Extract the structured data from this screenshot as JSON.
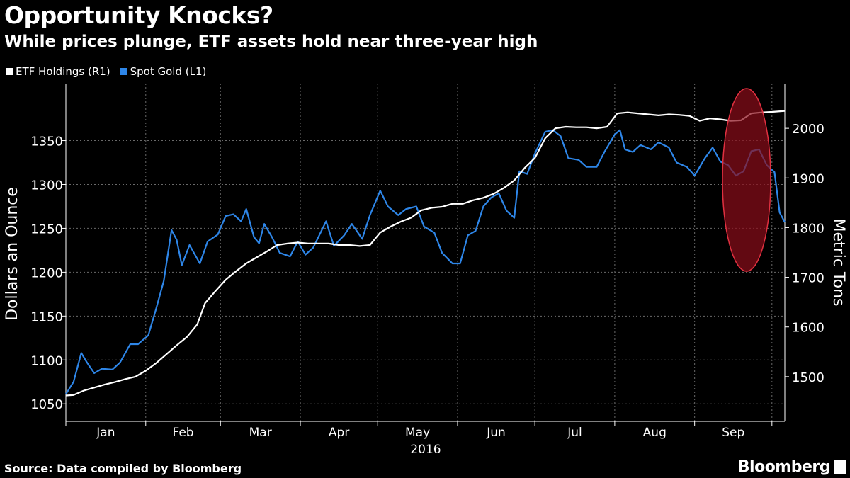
{
  "header": {
    "title": "Opportunity Knocks?",
    "subtitle": "While prices plunge, ETF assets hold near three-year high"
  },
  "legend": [
    {
      "label": "ETF Holdings (R1)",
      "color": "#ffffff"
    },
    {
      "label": "Spot Gold (L1)",
      "color": "#2e86e8"
    }
  ],
  "footer": {
    "source": "Source: Data compiled by Bloomberg",
    "brand": "Bloomberg"
  },
  "colors": {
    "background": "#000000",
    "etf": "#ffffff",
    "gold": "#2e86e8",
    "highlight": "#8b0d1a",
    "highlight_stroke": "#e03040",
    "grid": "#6a6a6a"
  },
  "chart_data": {
    "type": "line",
    "xlabel": "2016",
    "x_ticks": [
      "Jan",
      "Feb",
      "Mar",
      "Apr",
      "May",
      "Jun",
      "Jul",
      "Aug",
      "Sep"
    ],
    "x_range": [
      "2016-01-01",
      "2016-10-06"
    ],
    "left_axis": {
      "label": "Dollars an Ounce",
      "range": [
        1030,
        1415
      ],
      "ticks": [
        1050,
        1100,
        1150,
        1200,
        1250,
        1300,
        1350
      ]
    },
    "right_axis": {
      "label": "Metric Tons",
      "range": [
        1410,
        2090
      ],
      "ticks": [
        1500,
        1600,
        1700,
        1800,
        1900,
        2000
      ]
    },
    "grid": true,
    "legend_position": "top-left",
    "annotation": "red ellipse highlighting late September to early October",
    "series": [
      {
        "name": "Spot Gold (L1)",
        "axis": "left",
        "points": [
          [
            "2016-01-01",
            1061
          ],
          [
            "2016-01-04",
            1075
          ],
          [
            "2016-01-07",
            1108
          ],
          [
            "2016-01-09",
            1098
          ],
          [
            "2016-01-12",
            1085
          ],
          [
            "2016-01-15",
            1090
          ],
          [
            "2016-01-19",
            1089
          ],
          [
            "2016-01-22",
            1097
          ],
          [
            "2016-01-26",
            1118
          ],
          [
            "2016-01-29",
            1118
          ],
          [
            "2016-02-02",
            1128
          ],
          [
            "2016-02-05",
            1158
          ],
          [
            "2016-02-08",
            1190
          ],
          [
            "2016-02-11",
            1248
          ],
          [
            "2016-02-13",
            1237
          ],
          [
            "2016-02-15",
            1208
          ],
          [
            "2016-02-18",
            1231
          ],
          [
            "2016-02-22",
            1210
          ],
          [
            "2016-02-25",
            1235
          ],
          [
            "2016-02-29",
            1243
          ],
          [
            "2016-03-03",
            1264
          ],
          [
            "2016-03-06",
            1266
          ],
          [
            "2016-03-09",
            1258
          ],
          [
            "2016-03-11",
            1272
          ],
          [
            "2016-03-14",
            1240
          ],
          [
            "2016-03-16",
            1233
          ],
          [
            "2016-03-18",
            1255
          ],
          [
            "2016-03-21",
            1240
          ],
          [
            "2016-03-24",
            1222
          ],
          [
            "2016-03-28",
            1218
          ],
          [
            "2016-03-31",
            1235
          ],
          [
            "2016-04-03",
            1220
          ],
          [
            "2016-04-06",
            1228
          ],
          [
            "2016-04-08",
            1240
          ],
          [
            "2016-04-11",
            1258
          ],
          [
            "2016-04-14",
            1230
          ],
          [
            "2016-04-18",
            1242
          ],
          [
            "2016-04-21",
            1255
          ],
          [
            "2016-04-25",
            1238
          ],
          [
            "2016-04-28",
            1265
          ],
          [
            "2016-05-02",
            1293
          ],
          [
            "2016-05-05",
            1275
          ],
          [
            "2016-05-09",
            1265
          ],
          [
            "2016-05-12",
            1272
          ],
          [
            "2016-05-16",
            1275
          ],
          [
            "2016-05-19",
            1252
          ],
          [
            "2016-05-23",
            1245
          ],
          [
            "2016-05-26",
            1222
          ],
          [
            "2016-05-30",
            1210
          ],
          [
            "2016-06-02",
            1210
          ],
          [
            "2016-06-05",
            1242
          ],
          [
            "2016-06-08",
            1247
          ],
          [
            "2016-06-11",
            1275
          ],
          [
            "2016-06-14",
            1285
          ],
          [
            "2016-06-17",
            1290
          ],
          [
            "2016-06-20",
            1270
          ],
          [
            "2016-06-23",
            1262
          ],
          [
            "2016-06-25",
            1315
          ],
          [
            "2016-06-28",
            1312
          ],
          [
            "2016-07-01",
            1335
          ],
          [
            "2016-07-05",
            1360
          ],
          [
            "2016-07-08",
            1362
          ],
          [
            "2016-07-11",
            1355
          ],
          [
            "2016-07-14",
            1330
          ],
          [
            "2016-07-18",
            1328
          ],
          [
            "2016-07-21",
            1320
          ],
          [
            "2016-07-25",
            1320
          ],
          [
            "2016-07-28",
            1337
          ],
          [
            "2016-08-01",
            1357
          ],
          [
            "2016-08-03",
            1362
          ],
          [
            "2016-08-05",
            1340
          ],
          [
            "2016-08-08",
            1337
          ],
          [
            "2016-08-11",
            1345
          ],
          [
            "2016-08-15",
            1340
          ],
          [
            "2016-08-18",
            1348
          ],
          [
            "2016-08-22",
            1342
          ],
          [
            "2016-08-25",
            1325
          ],
          [
            "2016-08-29",
            1320
          ],
          [
            "2016-09-01",
            1310
          ],
          [
            "2016-09-05",
            1330
          ],
          [
            "2016-09-08",
            1342
          ],
          [
            "2016-09-11",
            1326
          ],
          [
            "2016-09-14",
            1322
          ],
          [
            "2016-09-17",
            1310
          ],
          [
            "2016-09-20",
            1315
          ],
          [
            "2016-09-23",
            1338
          ],
          [
            "2016-09-26",
            1340
          ],
          [
            "2016-09-29",
            1322
          ],
          [
            "2016-10-02",
            1314
          ],
          [
            "2016-10-04",
            1268
          ],
          [
            "2016-10-06",
            1257
          ]
        ]
      },
      {
        "name": "ETF Holdings (R1)",
        "axis": "right",
        "points": [
          [
            "2016-01-01",
            1462
          ],
          [
            "2016-01-04",
            1463
          ],
          [
            "2016-01-08",
            1472
          ],
          [
            "2016-01-12",
            1478
          ],
          [
            "2016-01-16",
            1484
          ],
          [
            "2016-01-20",
            1489
          ],
          [
            "2016-01-24",
            1495
          ],
          [
            "2016-01-28",
            1500
          ],
          [
            "2016-02-01",
            1512
          ],
          [
            "2016-02-05",
            1527
          ],
          [
            "2016-02-09",
            1545
          ],
          [
            "2016-02-13",
            1563
          ],
          [
            "2016-02-17",
            1580
          ],
          [
            "2016-02-21",
            1605
          ],
          [
            "2016-02-24",
            1648
          ],
          [
            "2016-02-28",
            1672
          ],
          [
            "2016-03-03",
            1695
          ],
          [
            "2016-03-07",
            1712
          ],
          [
            "2016-03-11",
            1728
          ],
          [
            "2016-03-15",
            1740
          ],
          [
            "2016-03-19",
            1752
          ],
          [
            "2016-03-23",
            1765
          ],
          [
            "2016-03-27",
            1768
          ],
          [
            "2016-03-31",
            1770
          ],
          [
            "2016-04-04",
            1768
          ],
          [
            "2016-04-08",
            1768
          ],
          [
            "2016-04-12",
            1768
          ],
          [
            "2016-04-16",
            1765
          ],
          [
            "2016-04-20",
            1765
          ],
          [
            "2016-04-24",
            1763
          ],
          [
            "2016-04-28",
            1765
          ],
          [
            "2016-05-02",
            1790
          ],
          [
            "2016-05-06",
            1802
          ],
          [
            "2016-05-10",
            1812
          ],
          [
            "2016-05-14",
            1820
          ],
          [
            "2016-05-18",
            1835
          ],
          [
            "2016-05-22",
            1840
          ],
          [
            "2016-05-26",
            1842
          ],
          [
            "2016-05-30",
            1848
          ],
          [
            "2016-06-03",
            1848
          ],
          [
            "2016-06-07",
            1855
          ],
          [
            "2016-06-11",
            1860
          ],
          [
            "2016-06-15",
            1868
          ],
          [
            "2016-06-19",
            1880
          ],
          [
            "2016-06-23",
            1895
          ],
          [
            "2016-06-27",
            1920
          ],
          [
            "2016-07-01",
            1940
          ],
          [
            "2016-07-05",
            1980
          ],
          [
            "2016-07-09",
            2000
          ],
          [
            "2016-07-13",
            2003
          ],
          [
            "2016-07-17",
            2002
          ],
          [
            "2016-07-21",
            2002
          ],
          [
            "2016-07-25",
            2000
          ],
          [
            "2016-07-29",
            2003
          ],
          [
            "2016-08-02",
            2030
          ],
          [
            "2016-08-06",
            2032
          ],
          [
            "2016-08-10",
            2030
          ],
          [
            "2016-08-14",
            2028
          ],
          [
            "2016-08-18",
            2026
          ],
          [
            "2016-08-22",
            2028
          ],
          [
            "2016-08-26",
            2027
          ],
          [
            "2016-08-30",
            2025
          ],
          [
            "2016-09-03",
            2015
          ],
          [
            "2016-09-07",
            2020
          ],
          [
            "2016-09-11",
            2018
          ],
          [
            "2016-09-15",
            2015
          ],
          [
            "2016-09-19",
            2016
          ],
          [
            "2016-09-23",
            2030
          ],
          [
            "2016-09-27",
            2032
          ],
          [
            "2016-10-01",
            2033
          ],
          [
            "2016-10-06",
            2035
          ]
        ]
      }
    ]
  }
}
